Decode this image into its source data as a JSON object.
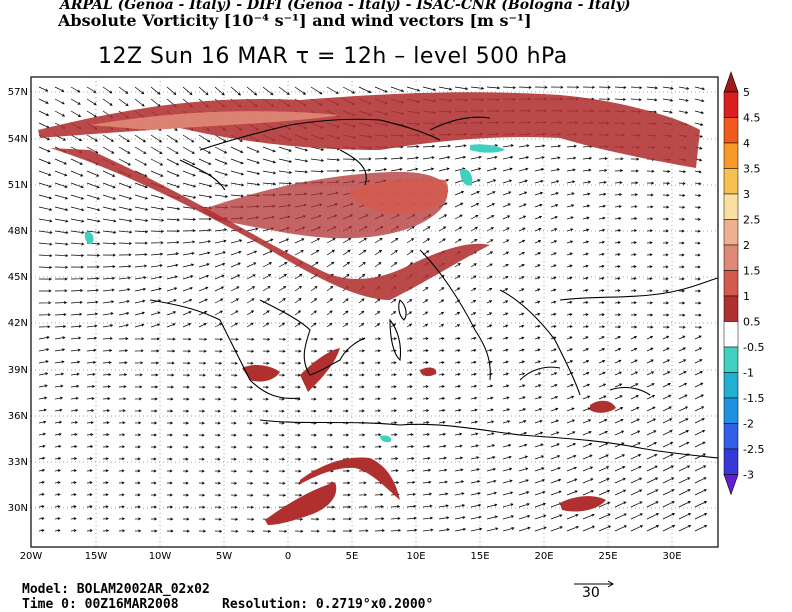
{
  "header": {
    "institutions": "ARPAL (Genoa - Italy)  -  DIFI (Genoa - Italy)  -  ISAC-CNR (Bologna - Italy)",
    "field_title": "Absolute Vorticity [10⁻⁴ s⁻¹] and wind vectors [m s⁻¹]"
  },
  "title": {
    "text": "12Z Sun 16 MAR  τ = 12h  –  level 500 hPa"
  },
  "map": {
    "lat_labels": [
      "57N",
      "54N",
      "51N",
      "48N",
      "45N",
      "42N",
      "39N",
      "36N",
      "33N",
      "30N"
    ],
    "lon_labels": [
      "20W",
      "15W",
      "10W",
      "5W",
      "0",
      "5E",
      "10E",
      "15E",
      "20E",
      "25E",
      "30E"
    ],
    "grid": true
  },
  "colorbar": {
    "labels": [
      "5",
      "4.5",
      "4",
      "3.5",
      "3",
      "2.5",
      "2",
      "1.5",
      "1",
      "0.5",
      "-0.5",
      "-1",
      "-1.5",
      "-2",
      "-2.5",
      "-3"
    ],
    "colors": [
      "#a01818",
      "#d82020",
      "#f05a1e",
      "#f89828",
      "#f8c050",
      "#fae0a0",
      "#f0b090",
      "#e08878",
      "#d45a50",
      "#b03030",
      "#ffffff",
      "#40d0c0",
      "#20b0d0",
      "#2090e0",
      "#3060e8",
      "#3838d8",
      "#6020d0"
    ]
  },
  "footer": {
    "model": "Model: BOLAM2002AR_02x02",
    "time": "Time 0: 00Z16MAR2008",
    "resolution": "Resolution: 0.2719°x0.2000°",
    "reference_vector": "30"
  }
}
